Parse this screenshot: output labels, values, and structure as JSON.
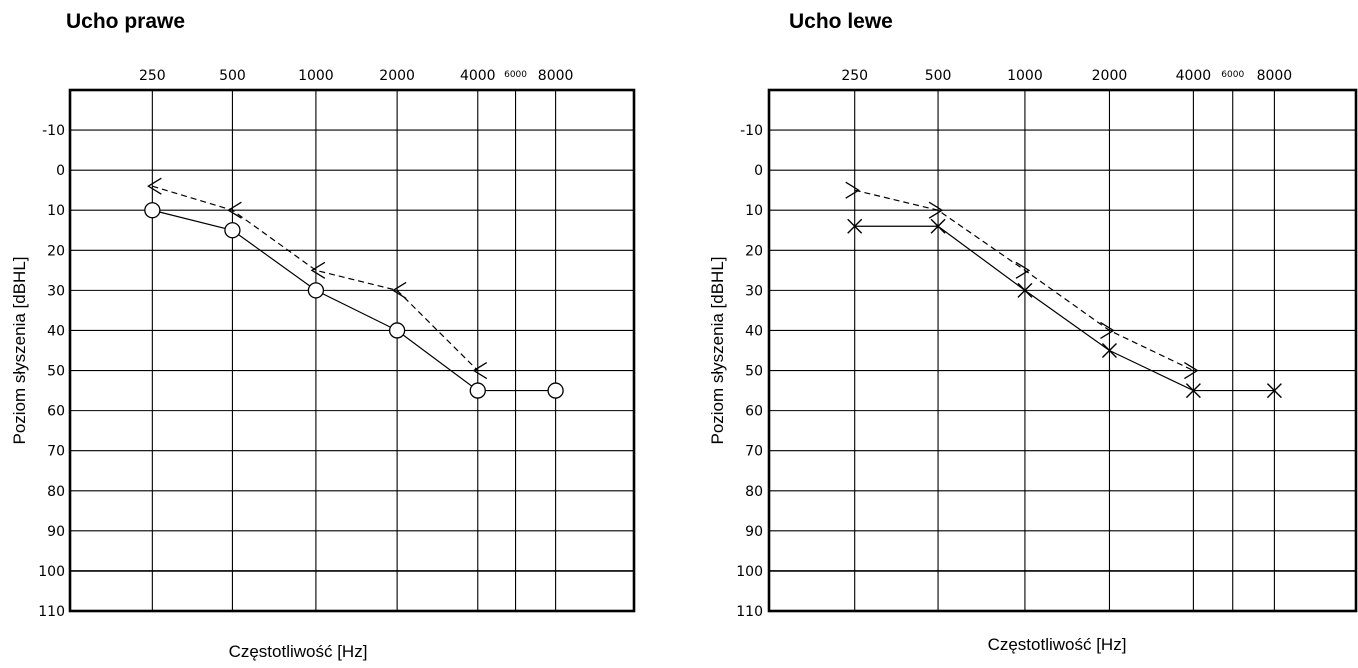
{
  "chart_data": [
    {
      "type": "line",
      "title": "Ucho prawe",
      "xlabel": "Częstotliwość [Hz]",
      "ylabel": "Poziom słyszenia [dBHL]",
      "x_ticks": [
        "250",
        "500",
        "1000",
        "2000",
        "4000",
        "6000",
        "8000"
      ],
      "y_ticks": [
        "-10",
        "0",
        "10",
        "20",
        "30",
        "40",
        "50",
        "60",
        "70",
        "80",
        "90",
        "100",
        "110"
      ],
      "ylim": [
        110,
        -20
      ],
      "x_scale": "log",
      "grid": true,
      "series": [
        {
          "marker": "circle",
          "style": "solid",
          "x": [
            250,
            500,
            1000,
            2000,
            4000,
            8000
          ],
          "y": [
            10,
            15,
            30,
            40,
            55,
            55
          ]
        },
        {
          "marker": "angle-left",
          "style": "dashed",
          "x": [
            250,
            500,
            1000,
            2000,
            4000
          ],
          "y": [
            4,
            10,
            25,
            30,
            50
          ]
        }
      ]
    },
    {
      "type": "line",
      "title": "Ucho lewe",
      "xlabel": "Częstotliwość [Hz]",
      "ylabel": "Poziom słyszenia [dBHL]",
      "x_ticks": [
        "250",
        "500",
        "1000",
        "2000",
        "4000",
        "6000",
        "8000"
      ],
      "y_ticks": [
        "-10",
        "0",
        "10",
        "20",
        "30",
        "40",
        "50",
        "60",
        "70",
        "80",
        "90",
        "100",
        "110"
      ],
      "ylim": [
        110,
        -20
      ],
      "x_scale": "log",
      "grid": true,
      "series": [
        {
          "marker": "cross",
          "style": "solid",
          "x": [
            250,
            500,
            1000,
            2000,
            4000,
            8000
          ],
          "y": [
            14,
            14,
            30,
            45,
            55,
            55
          ]
        },
        {
          "marker": "angle-right",
          "style": "dashed",
          "x": [
            250,
            500,
            1000,
            2000,
            4000
          ],
          "y": [
            5,
            10,
            25,
            40,
            50
          ]
        }
      ]
    }
  ]
}
